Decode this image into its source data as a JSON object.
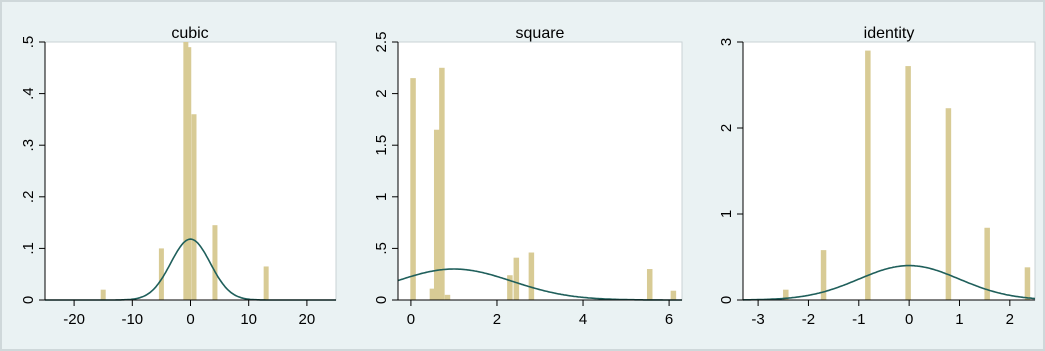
{
  "chart_data": [
    {
      "type": "bar",
      "title": "cubic",
      "xlim": [
        -25,
        25
      ],
      "ylim": [
        0,
        0.5
      ],
      "xticks": [
        "-20",
        "-10",
        "0",
        "10",
        "20"
      ],
      "yticks": [
        "0",
        ".1",
        ".2",
        ".3",
        ".4",
        ".5"
      ],
      "bars": [
        {
          "x": -15,
          "height": 0.02
        },
        {
          "x": -5,
          "height": 0.1
        },
        {
          "x": -0.8,
          "height": 0.5
        },
        {
          "x": -0.3,
          "height": 0.49
        },
        {
          "x": 0.6,
          "height": 0.36
        },
        {
          "x": 4.2,
          "height": 0.145
        },
        {
          "x": 13,
          "height": 0.065
        }
      ],
      "density_peak": 0.118,
      "density_mean": 0,
      "density_sd": 3.4,
      "colors": {
        "bars": "#d8cb95",
        "curve": "#1f5f5b"
      }
    },
    {
      "type": "bar",
      "title": "square",
      "xlim": [
        -0.3,
        6.3
      ],
      "ylim": [
        0,
        2.5
      ],
      "xticks": [
        "0",
        "2",
        "4",
        "6"
      ],
      "yticks": [
        "0",
        ".5",
        "1",
        "1.5",
        "2",
        "2.5"
      ],
      "bars": [
        {
          "x": 0.05,
          "height": 2.15
        },
        {
          "x": 0.5,
          "height": 0.11
        },
        {
          "x": 0.6,
          "height": 1.65
        },
        {
          "x": 0.72,
          "height": 2.25
        },
        {
          "x": 0.85,
          "height": 0.05
        },
        {
          "x": 2.3,
          "height": 0.24
        },
        {
          "x": 2.45,
          "height": 0.41
        },
        {
          "x": 2.8,
          "height": 0.46
        },
        {
          "x": 5.55,
          "height": 0.3
        },
        {
          "x": 6.1,
          "height": 0.09
        }
      ],
      "density_peak": 0.3,
      "density_mean": 1.0,
      "density_sd": 1.35,
      "colors": {
        "bars": "#d8cb95",
        "curve": "#1f5f5b"
      }
    },
    {
      "type": "bar",
      "title": "identity",
      "xlim": [
        -3.3,
        2.5
      ],
      "ylim": [
        0,
        3
      ],
      "xticks": [
        "-3",
        "-2",
        "-1",
        "0",
        "1",
        "2"
      ],
      "yticks": [
        "0",
        "1",
        "2",
        "3"
      ],
      "bars": [
        {
          "x": -2.45,
          "height": 0.12
        },
        {
          "x": -1.7,
          "height": 0.58
        },
        {
          "x": -0.82,
          "height": 2.9
        },
        {
          "x": -0.02,
          "height": 2.72
        },
        {
          "x": 0.78,
          "height": 2.23
        },
        {
          "x": 1.55,
          "height": 0.84
        },
        {
          "x": 2.35,
          "height": 0.38
        }
      ],
      "density_peak": 0.4,
      "density_mean": 0,
      "density_sd": 1.0,
      "colors": {
        "bars": "#d8cb95",
        "curve": "#1f5f5b"
      }
    }
  ]
}
